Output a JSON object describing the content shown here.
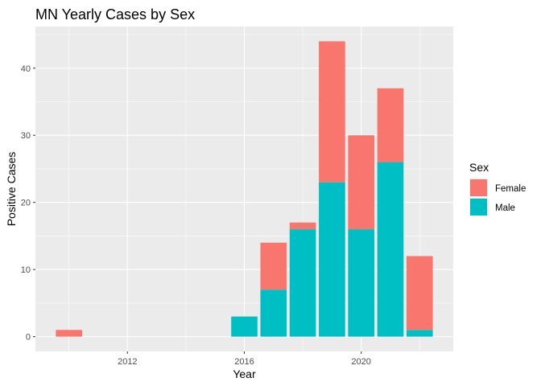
{
  "chart_data": {
    "type": "bar",
    "stacked": true,
    "title": "MN Yearly Cases by Sex",
    "xlabel": "Year",
    "ylabel": "Positive Cases",
    "x": [
      2010,
      2017,
      2018,
      2019,
      2020,
      2021,
      2022,
      2016
    ],
    "categories_years": [
      2010,
      2016,
      2017,
      2018,
      2019,
      2020,
      2021,
      2022
    ],
    "series": [
      {
        "name": "Male",
        "color": "#00BFC4",
        "values": [
          0,
          3,
          7,
          16,
          23,
          16,
          26,
          1
        ]
      },
      {
        "name": "Female",
        "color": "#F8766D",
        "values": [
          1,
          0,
          7,
          1,
          21,
          14,
          11,
          11
        ]
      }
    ],
    "xlim": [
      2008.85,
      2023.15
    ],
    "ylim": [
      -2.2,
      46.2
    ],
    "x_ticks": [
      2012,
      2016,
      2020
    ],
    "x_minor_ticks": [
      2010,
      2014,
      2018,
      2022
    ],
    "y_ticks": [
      0,
      10,
      20,
      30,
      40
    ],
    "y_minor_ticks": [
      5,
      15,
      25,
      35,
      45
    ],
    "grid": true,
    "legend": {
      "title": "Sex",
      "position": "right",
      "entries": [
        {
          "label": "Female",
          "color": "#F8766D"
        },
        {
          "label": "Male",
          "color": "#00BFC4"
        }
      ]
    },
    "panel_background": "#EBEBEB",
    "grid_color": "#FFFFFF"
  }
}
